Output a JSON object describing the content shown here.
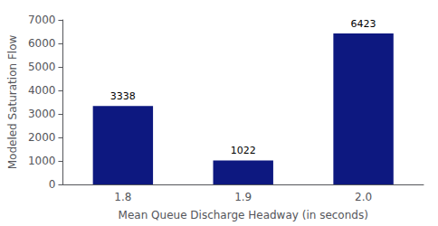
{
  "chart_data": {
    "type": "bar",
    "xlabel": "Mean Queue Discharge Headway (in seconds)",
    "ylabel": "Modeled Saturation Flow",
    "categories": [
      "1.8",
      "1.9",
      "2.0"
    ],
    "values": [
      3338,
      1022,
      6423
    ],
    "color": "#0d1880",
    "ylim": [
      0,
      7000
    ],
    "yticks": [
      0,
      1000,
      2000,
      3000,
      4000,
      5000,
      6000,
      7000
    ],
    "grid": false,
    "data_labels": true
  }
}
